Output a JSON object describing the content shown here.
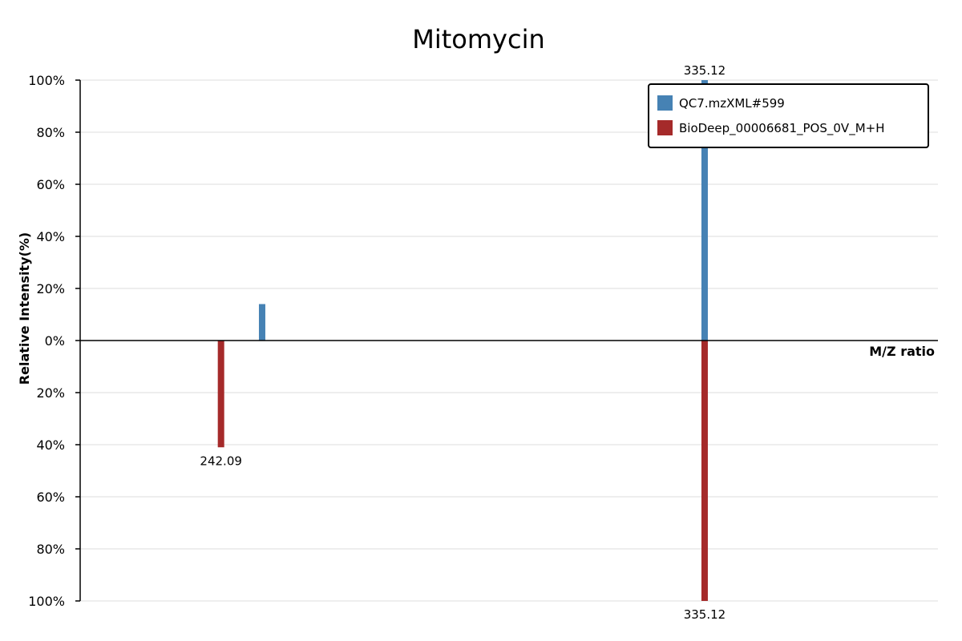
{
  "chart_data": {
    "type": "bar",
    "title": "Mitomycin",
    "xlabel": "M/Z ratio",
    "ylabel": "Relative Intensity(%)",
    "ylim": [
      -100,
      100
    ],
    "yticks": [
      {
        "value": 100,
        "label": "100%"
      },
      {
        "value": 80,
        "label": "80%"
      },
      {
        "value": 60,
        "label": "60%"
      },
      {
        "value": 40,
        "label": "40%"
      },
      {
        "value": 20,
        "label": "20%"
      },
      {
        "value": 0,
        "label": "0%"
      },
      {
        "value": -20,
        "label": "20%"
      },
      {
        "value": -40,
        "label": "40%"
      },
      {
        "value": -60,
        "label": "60%"
      },
      {
        "value": -80,
        "label": "80%"
      },
      {
        "value": -100,
        "label": "100%"
      }
    ],
    "xlim": [
      215,
      380
    ],
    "grid": true,
    "legend_position": "top-right",
    "series": [
      {
        "name": "QC7.mzXML#599",
        "color": "#4682b4",
        "direction": "up",
        "peaks": [
          {
            "mz": 250.0,
            "intensity": 14,
            "label": ""
          },
          {
            "mz": 335.12,
            "intensity": 100,
            "label": "335.12"
          }
        ]
      },
      {
        "name": "BioDeep_00006681_POS_0V_M+H",
        "color": "#a52a2a",
        "direction": "down",
        "peaks": [
          {
            "mz": 242.09,
            "intensity": 41,
            "label": "242.09"
          },
          {
            "mz": 335.12,
            "intensity": 100,
            "label": "335.12"
          }
        ]
      }
    ]
  }
}
